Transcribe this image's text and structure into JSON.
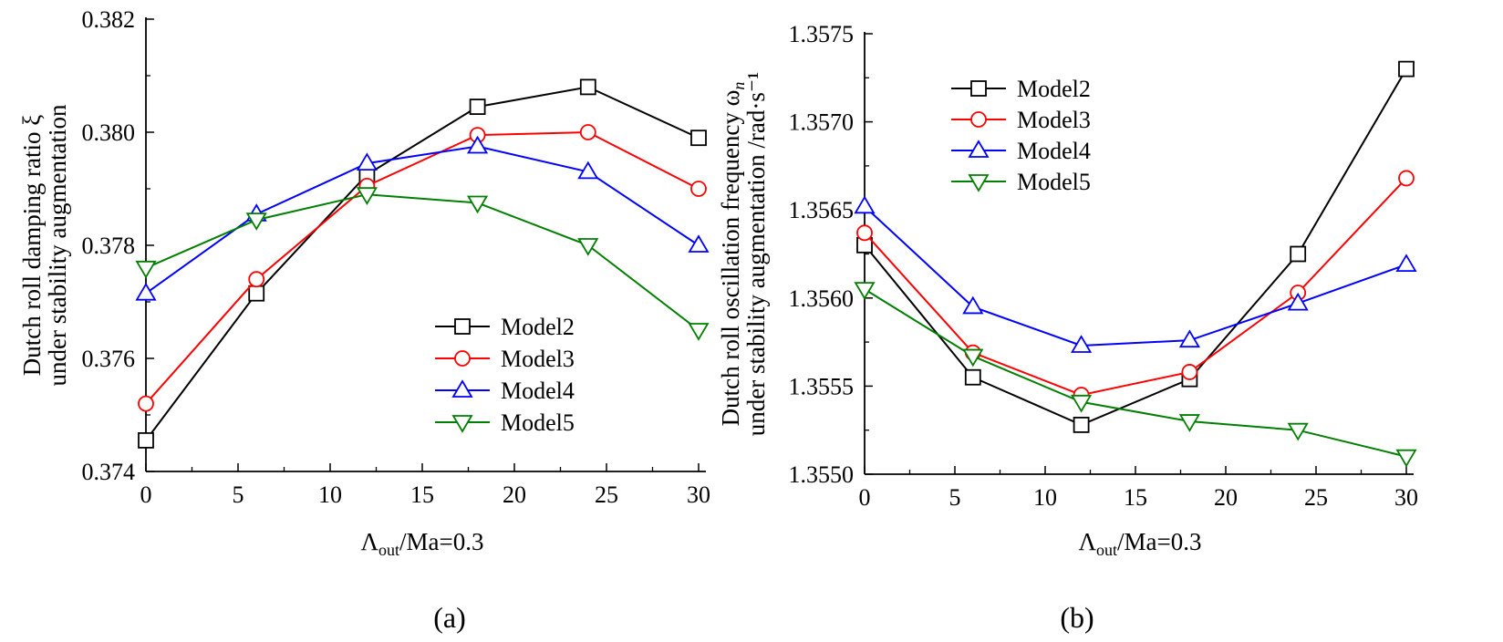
{
  "panels": [
    {
      "label": "(a)"
    },
    {
      "label": "(b)"
    }
  ],
  "chart_data": [
    {
      "type": "line",
      "title": "",
      "xlabel": {
        "main": "Λ",
        "sub": "out",
        "rest": "/Ma=0.3"
      },
      "ylabel": [
        "Dutch roll damping ratio ξ",
        "under stability augmentation"
      ],
      "x": [
        0,
        6,
        12,
        18,
        24,
        30
      ],
      "xlim": [
        0,
        30
      ],
      "ylim": [
        0.374,
        0.382
      ],
      "xticks": [
        0,
        5,
        10,
        15,
        20,
        25,
        30
      ],
      "xtick_labels": [
        "0",
        "5",
        "10",
        "15",
        "20",
        "25",
        "30"
      ],
      "yticks": [
        0.374,
        0.376,
        0.378,
        0.38,
        0.382
      ],
      "ytick_labels": [
        "0.374",
        "0.376",
        "0.378",
        "0.380",
        "0.382"
      ],
      "grid": false,
      "legend_position": "bottom-right",
      "series": [
        {
          "name": "Model2",
          "color": "#000000",
          "marker": "square",
          "values": [
            0.37455,
            0.37715,
            0.37925,
            0.38045,
            0.3808,
            0.3799
          ]
        },
        {
          "name": "Model3",
          "color": "#ff0000",
          "marker": "circle",
          "values": [
            0.3752,
            0.3774,
            0.37905,
            0.37995,
            0.38,
            0.379
          ]
        },
        {
          "name": "Model4",
          "color": "#0000ff",
          "marker": "triangle-up",
          "values": [
            0.37715,
            0.37855,
            0.37945,
            0.37975,
            0.3793,
            0.378
          ]
        },
        {
          "name": "Model5",
          "color": "#007f00",
          "marker": "triangle-down",
          "values": [
            0.3776,
            0.37845,
            0.3789,
            0.37875,
            0.378,
            0.3765
          ]
        }
      ]
    },
    {
      "type": "line",
      "title": "",
      "xlabel": {
        "main": "Λ",
        "sub": "out",
        "rest": "/Ma=0.3"
      },
      "ylabel": [
        "Dutch roll oscillation frequency ω",
        "under stability augmentation /rad·s⁻¹"
      ],
      "ylabel_symbol_sub": "n",
      "x": [
        0,
        6,
        12,
        18,
        24,
        30
      ],
      "xlim": [
        0,
        30
      ],
      "ylim": [
        1.355,
        1.3575
      ],
      "xticks": [
        0,
        5,
        10,
        15,
        20,
        25,
        30
      ],
      "xtick_labels": [
        "0",
        "5",
        "10",
        "15",
        "20",
        "25",
        "30"
      ],
      "yticks": [
        1.355,
        1.3555,
        1.356,
        1.3565,
        1.357,
        1.3575
      ],
      "ytick_labels": [
        "1.3550",
        "1.3555",
        "1.3560",
        "1.3565",
        "1.3570",
        "1.3575"
      ],
      "grid": false,
      "legend_position": "top-left",
      "series": [
        {
          "name": "Model2",
          "color": "#000000",
          "marker": "square",
          "values": [
            1.3563,
            1.35555,
            1.35528,
            1.35554,
            1.35625,
            1.3573
          ]
        },
        {
          "name": "Model3",
          "color": "#ff0000",
          "marker": "circle",
          "values": [
            1.35637,
            1.35569,
            1.35545,
            1.35558,
            1.35603,
            1.35668
          ]
        },
        {
          "name": "Model4",
          "color": "#0000ff",
          "marker": "triangle-up",
          "values": [
            1.35652,
            1.35595,
            1.35573,
            1.35576,
            1.35597,
            1.35619
          ]
        },
        {
          "name": "Model5",
          "color": "#007f00",
          "marker": "triangle-down",
          "values": [
            1.35605,
            1.35567,
            1.35541,
            1.3553,
            1.35525,
            1.3551
          ]
        }
      ]
    }
  ]
}
